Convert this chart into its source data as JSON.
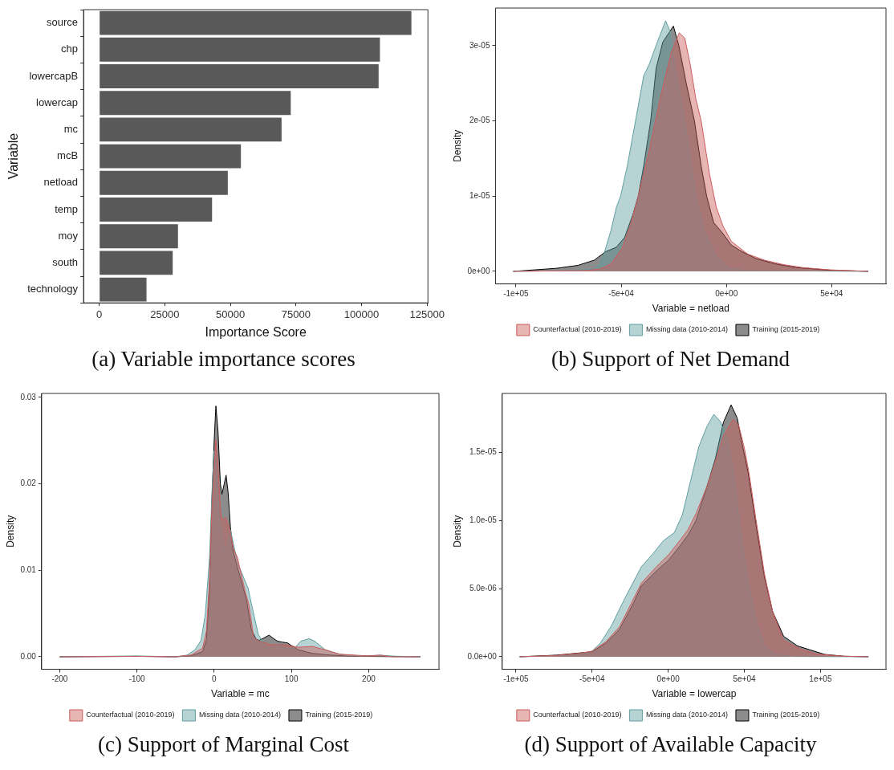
{
  "chart_data": [
    {
      "type": "bar",
      "orientation": "horizontal",
      "title": "(a) Variable importance scores",
      "xlabel": "Importance Score",
      "ylabel": "Variable",
      "categories": [
        "source",
        "chp",
        "lowercapB",
        "lowercap",
        "mc",
        "mcB",
        "netload",
        "temp",
        "moy",
        "south",
        "technology"
      ],
      "values": [
        119000,
        107000,
        106500,
        73000,
        69500,
        54000,
        49000,
        43000,
        30000,
        28000,
        18000
      ],
      "color": "#595959",
      "xlim": [
        -6000,
        125300
      ],
      "xticks": [
        0,
        25000,
        50000,
        75000,
        100000,
        125000
      ],
      "grid": false
    },
    {
      "type": "area",
      "title": "(b) Support of Net Demand",
      "xlabel": "Variable = netload",
      "ylabel": "Density",
      "legend": "bottom",
      "grid": false,
      "xlim": [
        -109700,
        75800
      ],
      "xticks": [
        {
          "value": -100000,
          "label": "-1e+05"
        },
        {
          "value": -50000,
          "label": "-5e+04"
        },
        {
          "value": 0,
          "label": "0e+00"
        },
        {
          "value": 50000,
          "label": "5e+04"
        }
      ],
      "ylim": [
        -1.67e-06,
        3.5e-05
      ],
      "yticks": [
        {
          "value": 0,
          "label": "0e+00"
        },
        {
          "value": 1e-05,
          "label": "1e-05"
        },
        {
          "value": 2e-05,
          "label": "2e-05"
        },
        {
          "value": 3e-05,
          "label": "3e-05"
        }
      ],
      "series": [
        {
          "name": "Counterfactual (2010-2019)",
          "color": "#cd5c5c",
          "x": [
            -101300,
            -67900,
            -60100,
            -54900,
            -49700,
            -45800,
            -41900,
            -36700,
            -31500,
            -26300,
            -22400,
            -19800,
            -17200,
            -14600,
            -12000,
            -8100,
            -4800,
            -1600,
            2300,
            10100,
            17900,
            27000,
            36200,
            49200,
            67400
          ],
          "values": [
            0,
            1e-07,
            3e-07,
            1e-06,
            3e-06,
            6e-06,
            1e-05,
            1.6e-05,
            2.3e-05,
            2.9e-05,
            3.17e-05,
            3.1e-05,
            2.75e-05,
            2.3e-05,
            2e-05,
            1.3e-05,
            8.5e-06,
            6e-06,
            4e-06,
            2.3e-06,
            1.5e-06,
            9e-07,
            5e-07,
            2e-07,
            0
          ]
        },
        {
          "name": "Missing data (2010-2014)",
          "color": "#5f9ea0",
          "x": [
            -101300,
            -74400,
            -62700,
            -60100,
            -58100,
            -54900,
            -52300,
            -50300,
            -47100,
            -43200,
            -39300,
            -36700,
            -32800,
            -28900,
            -26900,
            -23700,
            -19800,
            -17200,
            -14600,
            -10700,
            -4800,
            1000,
            8800,
            67400
          ],
          "values": [
            0,
            1e-07,
            3e-07,
            1e-06,
            2.4e-06,
            5.4e-06,
            8.5e-06,
            1e-05,
            1.4e-05,
            2e-05,
            2.6e-05,
            2.75e-05,
            3.05e-05,
            3.33e-05,
            3.2e-05,
            2.6e-05,
            2e-05,
            1.5e-05,
            1e-05,
            5.5e-06,
            2e-06,
            5e-07,
            1e-07,
            0
          ]
        },
        {
          "name": "Training (2015-2019)",
          "color": "#000000",
          "x": [
            -101300,
            -80900,
            -70500,
            -62700,
            -57500,
            -52300,
            -48400,
            -44500,
            -41900,
            -39300,
            -36000,
            -33400,
            -30200,
            -25200,
            -22600,
            -19100,
            -15200,
            -12000,
            -9400,
            -6100,
            -1600,
            2300,
            7500,
            14000,
            23100,
            33500,
            49200,
            67400
          ],
          "values": [
            0,
            4e-07,
            8e-07,
            1.5e-06,
            2.6e-06,
            3.2e-06,
            4.5e-06,
            7.5e-06,
            1e-05,
            1.4e-05,
            2e-05,
            2.7e-05,
            3.05e-05,
            3.26e-05,
            3e-05,
            2.5e-05,
            2e-05,
            1.4e-05,
            1e-05,
            6.5e-06,
            5e-06,
            3.5e-06,
            2.6e-06,
            1.7e-06,
            1e-06,
            5e-07,
            1.5e-07,
            0
          ]
        }
      ]
    },
    {
      "type": "area",
      "title": "(c) Support of Marginal Cost",
      "xlabel": "Variable = mc",
      "ylabel": "Density",
      "legend": "bottom",
      "grid": false,
      "xlim": [
        -223.4,
        291
      ],
      "xticks": [
        -200,
        -100,
        0,
        100,
        200
      ],
      "ylim": [
        -0.00145,
        0.03045
      ],
      "yticks": [
        {
          "value": 0,
          "label": "0.00"
        },
        {
          "value": 0.01,
          "label": "0.01"
        },
        {
          "value": 0.02,
          "label": "0.02"
        },
        {
          "value": 0.03,
          "label": "0.03"
        }
      ],
      "series": [
        {
          "name": "Counterfactual (2010-2019)",
          "color": "#cd5c5c",
          "x": [
            -200,
            -100,
            -50,
            -30,
            -15,
            -10,
            -6,
            -3,
            0,
            2,
            5,
            8,
            10,
            15,
            20,
            25,
            30,
            40,
            45,
            51,
            58,
            73,
            91,
            109,
            127,
            144,
            162,
            200,
            215,
            230,
            267
          ],
          "values": [
            0,
            5e-05,
            0,
            0.0002,
            0.001,
            0.003,
            0.009,
            0.017,
            0.022,
            0.0251,
            0.022,
            0.017,
            0.0158,
            0.0161,
            0.0148,
            0.0125,
            0.0115,
            0.0076,
            0.006,
            0.0023,
            0.0018,
            0.0014,
            0.0014,
            0.0011,
            0.0012,
            0.0008,
            0.0003,
            0.0001,
            0.0002,
            0,
            0
          ]
        },
        {
          "name": "Missing data (2010-2014)",
          "color": "#5f9ea0",
          "x": [
            -200,
            -100,
            -50,
            -35,
            -25,
            -17,
            -11.5,
            -6,
            -2.5,
            0,
            3,
            7,
            13.6,
            17,
            21,
            25,
            30,
            44,
            48,
            57,
            69,
            82,
            94,
            105,
            112,
            123,
            130,
            144,
            162,
            187,
            216,
            234,
            267
          ],
          "values": [
            0,
            0.0001,
            0,
            0.0002,
            0.0008,
            0.0019,
            0.0049,
            0.0115,
            0.0198,
            0.0238,
            0.022,
            0.016,
            0.0122,
            0.013,
            0.0147,
            0.013,
            0.0109,
            0.0079,
            0.0062,
            0.0026,
            0.0009,
            0.0014,
            0.0009,
            0.0011,
            0.0018,
            0.0021,
            0.0018,
            0.0008,
            0.0003,
            0.0001,
            0.00017,
            7e-05,
            0
          ]
        },
        {
          "name": "Training (2015-2019)",
          "color": "#000000",
          "x": [
            -200,
            -100,
            -50,
            -30,
            -15,
            -10,
            -6,
            -3,
            0,
            2.2,
            5,
            8,
            10,
            13,
            15.4,
            18,
            21,
            24,
            28,
            35,
            42,
            48,
            54,
            58,
            65,
            71,
            77,
            82,
            88,
            95,
            100,
            109,
            127,
            150,
            180,
            267
          ],
          "values": [
            0,
            5e-05,
            0,
            0.0001,
            0.0006,
            0.002,
            0.008,
            0.018,
            0.025,
            0.029,
            0.026,
            0.02,
            0.0188,
            0.02,
            0.021,
            0.019,
            0.015,
            0.0125,
            0.011,
            0.0088,
            0.0065,
            0.0032,
            0.0021,
            0.0019,
            0.0022,
            0.0025,
            0.0021,
            0.0018,
            0.0017,
            0.0016,
            0.0013,
            0.0008,
            0.0004,
            0.0002,
            5e-05,
            0
          ]
        }
      ]
    },
    {
      "type": "area",
      "title": "(d) Support of Available Capacity",
      "xlabel": "Variable = lowercap",
      "ylabel": "Density",
      "legend": "bottom",
      "grid": false,
      "xlim": [
        -109000,
        143000
      ],
      "xticks": [
        {
          "value": -100000,
          "label": "-1e+05"
        },
        {
          "value": -50000,
          "label": "-5e+04"
        },
        {
          "value": 0,
          "label": "0e+00"
        },
        {
          "value": 50000,
          "label": "5e+04"
        },
        {
          "value": 100000,
          "label": "1e+05"
        }
      ],
      "ylim": [
        -9.2e-07,
        1.93e-05
      ],
      "yticks": [
        {
          "value": 0,
          "label": "0.0e+00"
        },
        {
          "value": 5e-06,
          "label": "5.0e-06"
        },
        {
          "value": 1e-05,
          "label": "1.0e-05"
        },
        {
          "value": 1.5e-05,
          "label": "1.5e-05"
        }
      ],
      "series": [
        {
          "name": "Counterfactual (2010-2019)",
          "color": "#cd5c5c",
          "x": [
            -97600,
            -73300,
            -58900,
            -50000,
            -41000,
            -32000,
            -23000,
            -17600,
            -8600,
            400,
            7500,
            12900,
            18300,
            25500,
            30900,
            36300,
            42600,
            46200,
            50000,
            53000,
            58000,
            63300,
            68600,
            75800,
            86600,
            97400,
            115400,
            131500
          ],
          "values": [
            0,
            1e-07,
            2.5e-07,
            4e-07,
            1.1e-06,
            2.2e-06,
            4.2e-06,
            5.4e-06,
            6.5e-06,
            7.5e-06,
            8.5e-06,
            9.3e-06,
            1.05e-05,
            1.25e-05,
            1.43e-05,
            1.62e-05,
            1.74e-05,
            1.7e-05,
            1.53e-05,
            1.35e-05,
            9.8e-06,
            6e-06,
            3.3e-06,
            1.2e-06,
            5.8e-07,
            2e-07,
            4e-08,
            0
          ]
        },
        {
          "name": "Missing data (2010-2014)",
          "color": "#5f9ea0",
          "x": [
            -97600,
            -73300,
            -58900,
            -50000,
            -44600,
            -37400,
            -28400,
            -17600,
            -10400,
            -3200,
            4000,
            9300,
            14700,
            20100,
            25500,
            30000,
            34500,
            39000,
            43500,
            47100,
            52500,
            57900,
            63300,
            70400,
            83000,
            131500
          ],
          "values": [
            0,
            6e-08,
            1.7e-07,
            4.2e-07,
            1e-06,
            2.25e-06,
            4.3e-06,
            6.6e-06,
            7.5e-06,
            8.5e-06,
            9.1e-06,
            1.04e-05,
            1.29e-05,
            1.54e-05,
            1.69e-05,
            1.777e-05,
            1.72e-05,
            1.58e-05,
            1.31e-05,
            9.5e-06,
            5.4e-06,
            2.5e-06,
            8e-07,
            1.7e-07,
            2e-08,
            0
          ]
        },
        {
          "name": "Training (2015-2019)",
          "color": "#000000",
          "x": [
            -97600,
            -73300,
            -58900,
            -50000,
            -41000,
            -32000,
            -23000,
            -17600,
            -8600,
            400,
            7500,
            12900,
            18300,
            25500,
            30900,
            36300,
            41300,
            45300,
            48900,
            52500,
            57900,
            63300,
            68600,
            75800,
            84800,
            93800,
            102800,
            115400,
            131500
          ],
          "values": [
            0,
            1.2e-07,
            2.7e-07,
            3.7e-07,
            1e-06,
            2e-06,
            3.9e-06,
            5.2e-06,
            6.2e-06,
            7.1e-06,
            8.1e-06,
            8.9e-06,
            1e-05,
            1.25e-05,
            1.45e-05,
            1.72e-05,
            1.846e-05,
            1.75e-05,
            1.54e-05,
            1.35e-05,
            9.5e-06,
            5.8e-06,
            3.3e-06,
            1.5e-06,
            8e-07,
            4.8e-07,
            1.7e-07,
            4e-08,
            0
          ]
        }
      ]
    }
  ]
}
